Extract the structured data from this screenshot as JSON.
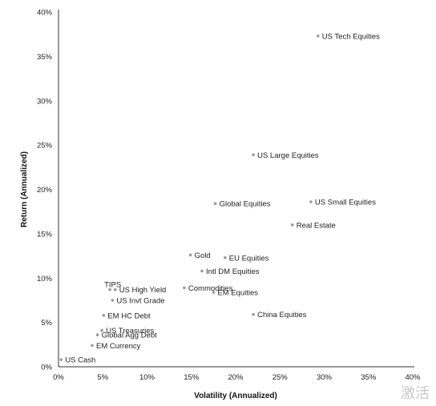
{
  "chart_data": {
    "type": "scatter",
    "xlabel": "Volatility (Annualized)",
    "ylabel": "Return (Annualized)",
    "xlim": [
      0,
      40
    ],
    "ylim": [
      0,
      40
    ],
    "x_ticks": [
      "0%",
      "5%",
      "10%",
      "15%",
      "20%",
      "25%",
      "30%",
      "35%",
      "40%"
    ],
    "y_ticks": [
      "0%",
      "5%",
      "10%",
      "15%",
      "20%",
      "25%",
      "30%",
      "35%",
      "40%"
    ],
    "grid": false,
    "point_color": "#9a9a9a",
    "points": [
      {
        "label": "US Tech Equities",
        "x": 29.3,
        "y": 37.3
      },
      {
        "label": "US Large Equities",
        "x": 22.0,
        "y": 23.9
      },
      {
        "label": "Global Equities",
        "x": 17.7,
        "y": 18.4
      },
      {
        "label": "US Small Equities",
        "x": 28.5,
        "y": 18.6
      },
      {
        "label": "Real Estate",
        "x": 26.4,
        "y": 16.0
      },
      {
        "label": "Gold",
        "x": 14.9,
        "y": 12.6
      },
      {
        "label": "EU Equities",
        "x": 18.8,
        "y": 12.3
      },
      {
        "label": "Intl DM Equities",
        "x": 16.2,
        "y": 10.8
      },
      {
        "label": "Commodities",
        "x": 14.2,
        "y": 8.9
      },
      {
        "label": "EM Equities",
        "x": 17.5,
        "y": 8.4
      },
      {
        "label": "China Equities",
        "x": 22.0,
        "y": 5.9
      },
      {
        "label": "TIPS",
        "x": 5.8,
        "y": 8.7
      },
      {
        "label": "US High Yield",
        "x": 6.4,
        "y": 8.7
      },
      {
        "label": "US Invt Grade",
        "x": 6.1,
        "y": 7.5
      },
      {
        "label": "EM HC Debt",
        "x": 5.1,
        "y": 5.8
      },
      {
        "label": "US Treasuries",
        "x": 4.9,
        "y": 4.1
      },
      {
        "label": "Global Agg Debt",
        "x": 4.4,
        "y": 3.6
      },
      {
        "label": "EM Currency",
        "x": 3.8,
        "y": 2.4
      },
      {
        "label": "US Cash",
        "x": 0.3,
        "y": 0.8
      }
    ]
  },
  "watermark": "激活"
}
